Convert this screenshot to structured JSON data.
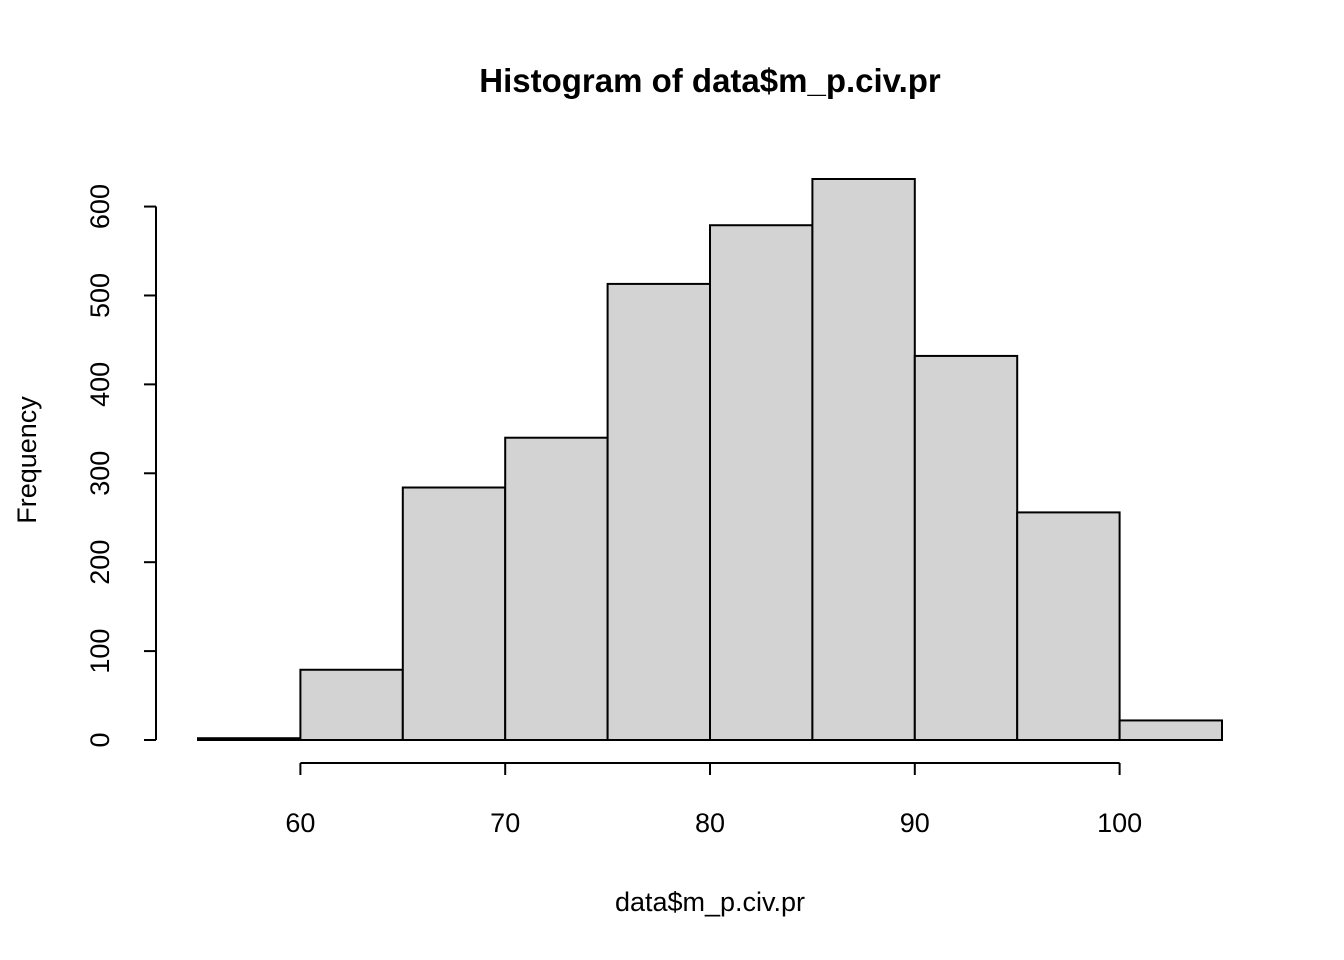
{
  "chart_data": {
    "type": "bar",
    "title": "Histogram of data$m_p.civ.pr",
    "xlabel": "data$m_p.civ.pr",
    "ylabel": "Frequency",
    "bins": [
      {
        "start": 55,
        "end": 60,
        "count": 2
      },
      {
        "start": 60,
        "end": 65,
        "count": 79
      },
      {
        "start": 65,
        "end": 70,
        "count": 284
      },
      {
        "start": 70,
        "end": 75,
        "count": 340
      },
      {
        "start": 75,
        "end": 80,
        "count": 513
      },
      {
        "start": 80,
        "end": 85,
        "count": 579
      },
      {
        "start": 85,
        "end": 90,
        "count": 631
      },
      {
        "start": 90,
        "end": 95,
        "count": 432
      },
      {
        "start": 95,
        "end": 100,
        "count": 256
      },
      {
        "start": 100,
        "end": 105,
        "count": 22
      }
    ],
    "xticks": [
      60,
      70,
      80,
      90,
      100
    ],
    "yticks": [
      0,
      100,
      200,
      300,
      400,
      500,
      600
    ],
    "xlim": [
      55,
      105
    ],
    "ylim": [
      0,
      631
    ],
    "grid": false,
    "bar_color": "#d3d3d3",
    "edge_color": "#000000"
  }
}
